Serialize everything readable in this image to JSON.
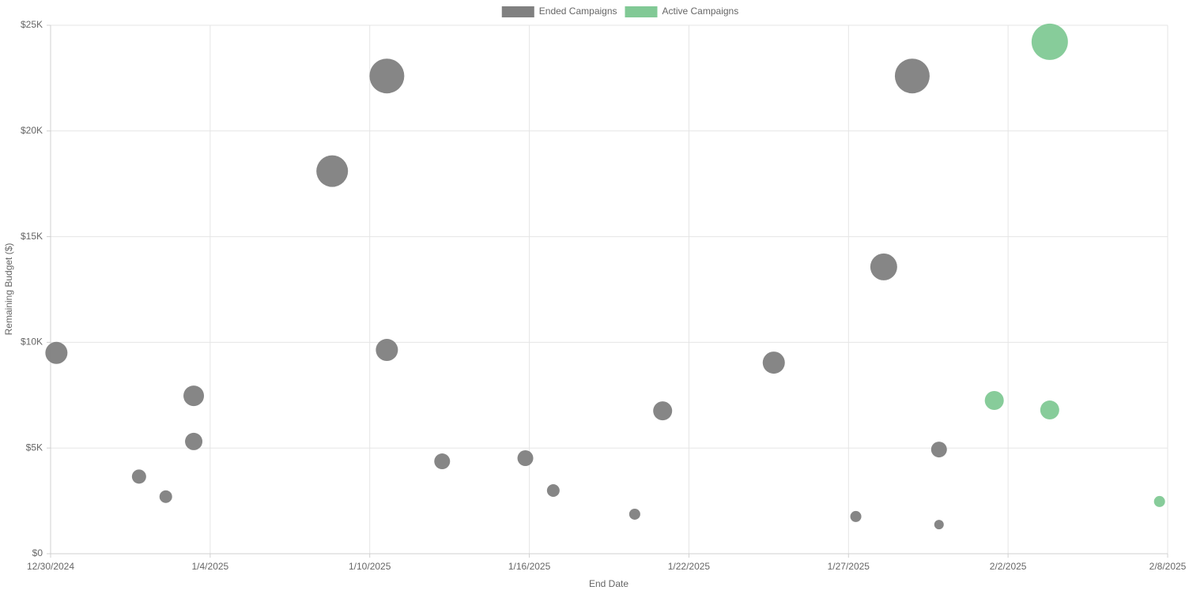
{
  "chart_data": {
    "type": "bubble",
    "x_label": "End Date",
    "y_label": "Remaining Budget ($)",
    "grid": true,
    "legend": "top",
    "xlim": [
      "2024-12-30T00:00",
      "2025-02-08T00:00"
    ],
    "xticks": [
      {
        "value": "2024-12-30T00:00",
        "label": "12/30/2024"
      },
      {
        "value": "2025-01-04T17:09",
        "label": "1/4/2025"
      },
      {
        "value": "2025-01-10T10:17",
        "label": "1/10/2025"
      },
      {
        "value": "2025-01-16T03:26",
        "label": "1/16/2025"
      },
      {
        "value": "2025-01-21T20:34",
        "label": "1/22/2025"
      },
      {
        "value": "2025-01-27T13:43",
        "label": "1/27/2025"
      },
      {
        "value": "2025-02-02T06:51",
        "label": "2/2/2025"
      },
      {
        "value": "2025-02-08T00:00",
        "label": "2/8/2025"
      }
    ],
    "ylim": [
      0,
      25000
    ],
    "yticks": [
      {
        "value": 0,
        "label": "$0"
      },
      {
        "value": 5000,
        "label": "$5K"
      },
      {
        "value": 10000,
        "label": "$10K"
      },
      {
        "value": 15000,
        "label": "$15K"
      },
      {
        "value": 20000,
        "label": "$20K"
      },
      {
        "value": 25000,
        "label": "$25K"
      }
    ],
    "series": [
      {
        "name": "Ended Campaigns",
        "color": "#808080",
        "x": [
          "2024-12-30T05:00",
          "2025-01-02T04:00",
          "2025-01-03T03:00",
          "2025-01-04T03:00",
          "2025-01-04T03:00",
          "2025-01-09T02:00",
          "2025-01-11T01:00",
          "2025-01-11T01:00",
          "2025-01-13T00:30",
          "2025-01-16T00:00",
          "2025-01-17T00:00",
          "2025-01-19T22:00",
          "2025-01-20T22:00",
          "2025-01-24T21:30",
          "2025-01-27T20:00",
          "2025-01-28T20:00",
          "2025-01-29T20:30",
          "2025-01-30T19:30",
          "2025-01-30T19:30"
        ],
        "values": [
          9500,
          3650,
          2700,
          7470,
          5310,
          18100,
          22600,
          9640,
          4370,
          4520,
          2990,
          1870,
          6760,
          9040,
          1760,
          13570,
          22600,
          4930,
          1380
        ],
        "sizes": [
          14,
          9,
          8,
          13,
          11,
          20,
          22,
          14,
          10,
          10,
          8,
          7,
          12,
          14,
          7,
          17,
          22,
          10,
          6
        ]
      },
      {
        "name": "Active Campaigns",
        "color": "#81c995",
        "x": [
          "2025-02-01T19:00",
          "2025-02-03T18:40",
          "2025-02-03T18:40",
          "2025-02-07T17:00"
        ],
        "values": [
          7250,
          6800,
          24220,
          2470
        ],
        "sizes": [
          12,
          12,
          23,
          7
        ]
      }
    ]
  }
}
